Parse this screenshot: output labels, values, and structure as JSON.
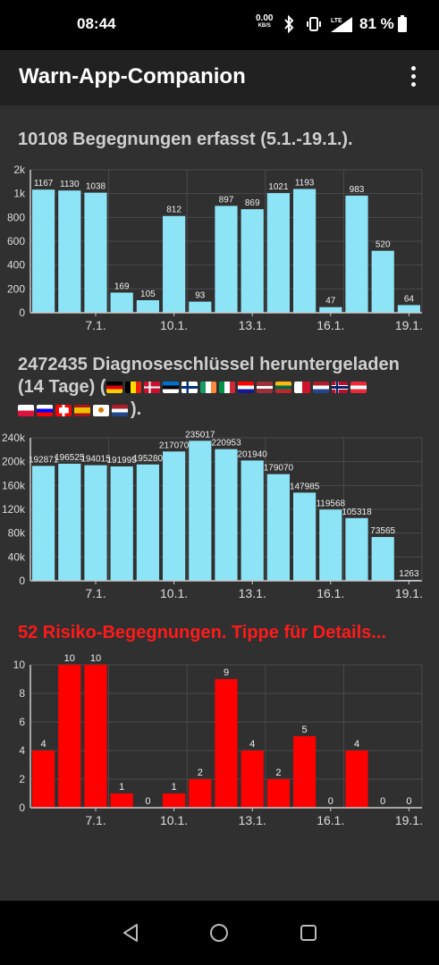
{
  "status_bar": {
    "time": "08:44",
    "net_speed": "0.00",
    "net_unit": "KB/S",
    "battery": "81 %"
  },
  "app_bar": {
    "title": "Warn-App-Companion",
    "menu_icon": "more-vert-icon"
  },
  "colors": {
    "background": "#303030",
    "bar_cyan": "#8ee4f7",
    "risk_red": "#ff0000",
    "app_bar": "#212121"
  },
  "section1": {
    "heading": "10108 Begegnungen erfasst (5.1.-19.1.)."
  },
  "section2": {
    "heading_line1": "2472435 Diagnoseschlüssel heruntergeladen",
    "heading_line2": "(14 Tage) (",
    "heading_end": ").",
    "flags_row1": [
      "de",
      "be",
      "dk",
      "ee",
      "fi",
      "ie",
      "it",
      "hr",
      "lv",
      "lt",
      "mt",
      "nl",
      "no",
      "at"
    ],
    "flags_row2": [
      "pl",
      "si",
      "ch",
      "es",
      "cy",
      "nl"
    ]
  },
  "section3": {
    "heading": "52 Risiko-Begegnungen. Tippe für Details..."
  },
  "chart_data": [
    {
      "type": "bar",
      "title": "10108 Begegnungen erfasst (5.1.-19.1.).",
      "x": [
        "5.1.",
        "6.1.",
        "7.1.",
        "8.1.",
        "9.1.",
        "10.1.",
        "11.1.",
        "12.1.",
        "13.1.",
        "14.1.",
        "15.1.",
        "16.1.",
        "17.1.",
        "18.1.",
        "19.1."
      ],
      "values": [
        1167,
        1130,
        1038,
        169,
        105,
        812,
        93,
        897,
        869,
        1021,
        1193,
        47,
        983,
        520,
        64
      ],
      "xtick_labels": [
        "7.1.",
        "10.1.",
        "13.1.",
        "16.1.",
        "19.1."
      ],
      "ytick_labels": [
        "0",
        "200",
        "400",
        "600",
        "800",
        "1k",
        "2k"
      ],
      "color": "#8ee4f7",
      "grid": true
    },
    {
      "type": "bar",
      "title": "2472435 Diagnoseschlüssel heruntergeladen (14 Tage)",
      "x": [
        "5.1.",
        "6.1.",
        "7.1.",
        "8.1.",
        "9.1.",
        "10.1.",
        "11.1.",
        "12.1.",
        "13.1.",
        "14.1.",
        "15.1.",
        "16.1.",
        "17.1.",
        "18.1.",
        "19.1."
      ],
      "values": [
        192871,
        196525,
        194015,
        191995,
        195280,
        217070,
        235017,
        220953,
        201940,
        179070,
        147985,
        119568,
        105318,
        73565,
        1263
      ],
      "xtick_labels": [
        "7.1.",
        "10.1.",
        "13.1.",
        "16.1.",
        "19.1."
      ],
      "ytick_labels": [
        "0",
        "40k",
        "80k",
        "120k",
        "160k",
        "200k",
        "240k"
      ],
      "ylim": [
        0,
        240000
      ],
      "color": "#8ee4f7",
      "grid": true
    },
    {
      "type": "bar",
      "title": "52 Risiko-Begegnungen. Tippe für Details...",
      "x": [
        "5.1.",
        "6.1.",
        "7.1.",
        "8.1.",
        "9.1.",
        "10.1.",
        "11.1.",
        "12.1.",
        "13.1.",
        "14.1.",
        "15.1.",
        "16.1.",
        "17.1.",
        "18.1.",
        "19.1."
      ],
      "values": [
        4,
        10,
        10,
        1,
        0,
        1,
        2,
        9,
        4,
        2,
        5,
        0,
        4,
        0,
        0
      ],
      "xtick_labels": [
        "7.1.",
        "10.1.",
        "13.1.",
        "16.1.",
        "19.1."
      ],
      "ytick_labels": [
        "0",
        "2",
        "4",
        "6",
        "8",
        "10"
      ],
      "ylim": [
        0,
        10
      ],
      "color": "#ff0000",
      "grid": true
    }
  ]
}
